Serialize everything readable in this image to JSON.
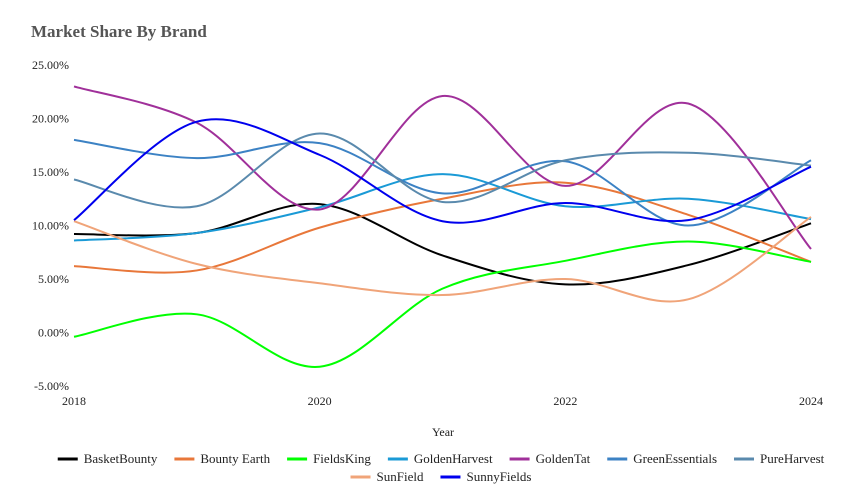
{
  "chart_data": {
    "type": "line",
    "title": "Market Share By Brand",
    "xlabel": "Year",
    "ylabel": "",
    "x": [
      2018,
      2019,
      2020,
      2021,
      2022,
      2023,
      2024
    ],
    "x_ticks": [
      "2018",
      "2020",
      "2022",
      "2024"
    ],
    "y_ticks": [
      "25.00%",
      "20.00%",
      "15.00%",
      "10.00%",
      "5.00%",
      "0.00%",
      "-5.00%"
    ],
    "ylim": [
      -5,
      25
    ],
    "grid": false,
    "legend_position": "bottom",
    "series": [
      {
        "name": "BasketBounty",
        "color": "#000000",
        "values": [
          9.2,
          9.3,
          12.0,
          7.2,
          4.5,
          6.3,
          10.2
        ]
      },
      {
        "name": "Bounty Earth",
        "color": "#e8773a",
        "values": [
          6.2,
          5.8,
          9.8,
          12.5,
          14.0,
          11.0,
          6.6
        ]
      },
      {
        "name": "FieldsKing",
        "color": "#00ff00",
        "values": [
          -0.4,
          1.7,
          -3.2,
          4.1,
          6.7,
          8.5,
          6.6
        ]
      },
      {
        "name": "GoldenHarvest",
        "color": "#1a9ad6",
        "values": [
          8.6,
          9.3,
          11.7,
          14.8,
          11.8,
          12.5,
          10.6
        ]
      },
      {
        "name": "GoldenTat",
        "color": "#a0309a",
        "values": [
          23.0,
          19.6,
          11.5,
          22.1,
          13.7,
          21.4,
          7.8
        ]
      },
      {
        "name": "GreenEssentials",
        "color": "#3c82c4",
        "values": [
          18.0,
          16.3,
          17.7,
          13.0,
          16.0,
          10.0,
          16.1
        ]
      },
      {
        "name": "PureHarvest",
        "color": "#5a8aad",
        "values": [
          14.3,
          11.8,
          18.6,
          12.2,
          16.1,
          16.8,
          15.6
        ]
      },
      {
        "name": "SunField",
        "color": "#f0a479",
        "values": [
          10.4,
          6.4,
          4.6,
          3.5,
          5.0,
          3.1,
          10.8
        ]
      },
      {
        "name": "SunnyFields",
        "color": "#0000ee",
        "values": [
          10.5,
          19.7,
          16.6,
          10.4,
          12.1,
          10.5,
          15.5
        ]
      }
    ]
  }
}
